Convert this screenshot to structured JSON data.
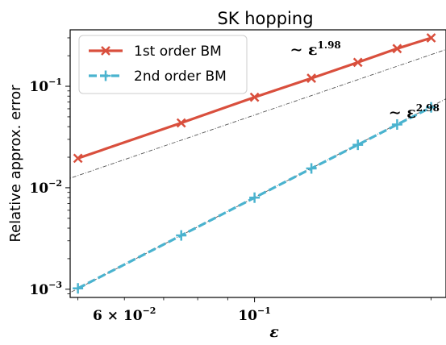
{
  "chart_data": {
    "type": "line",
    "title": "SK hopping",
    "xlabel": "ε",
    "ylabel": "Relative approx. error",
    "xscale": "log",
    "yscale": "log",
    "xlim": [
      0.0485,
      0.212
    ],
    "ylim": [
      0.00083,
      0.36
    ],
    "x": [
      0.05,
      0.075,
      0.1,
      0.125,
      0.15,
      0.175,
      0.2
    ],
    "series": [
      {
        "name": "1st order BM",
        "color": "#d94f3d",
        "marker": "x",
        "style": "solid",
        "values": [
          0.0195,
          0.0435,
          0.078,
          0.12,
          0.172,
          0.235,
          0.3
        ]
      },
      {
        "name": "2nd order BM",
        "color": "#4ab3cf",
        "marker": "+",
        "style": "dashed",
        "values": [
          0.00102,
          0.00339,
          0.00799,
          0.0155,
          0.0265,
          0.042,
          0.062
        ]
      }
    ],
    "fit_lines": [
      {
        "a": 4.97,
        "exponent": 1.98,
        "color": "#555555"
      },
      {
        "a": 7.65,
        "exponent": 2.98,
        "color": "#555555"
      }
    ],
    "yticks": [
      {
        "value": 0.001,
        "base": "10",
        "exp": "−3"
      },
      {
        "value": 0.01,
        "base": "10",
        "exp": "−2"
      },
      {
        "value": 0.1,
        "base": "10",
        "exp": "−1"
      }
    ],
    "xticks": [
      {
        "value": 0.06,
        "base": "6 × 10",
        "exp": "−2"
      },
      {
        "value": 0.1,
        "base": "10",
        "exp": "−1"
      }
    ],
    "annotations": [
      {
        "base": "∼ ε",
        "exp": "1.98",
        "x": 0.127,
        "y": 0.205
      },
      {
        "base": "∼ ε",
        "exp": "2.98",
        "x": 0.187,
        "y": 0.049
      }
    ],
    "legend": "top-left",
    "grid": false
  }
}
